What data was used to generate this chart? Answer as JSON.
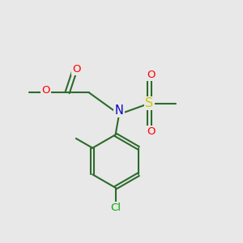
{
  "background_color": "#e8e8e8",
  "bond_color": "#2d6b2d",
  "atom_colors": {
    "O": "#ff0000",
    "N": "#0000cc",
    "S": "#cccc00",
    "Cl": "#00aa00",
    "C": "#2d6b2d"
  },
  "figsize": [
    3.0,
    3.0
  ],
  "dpi": 100
}
